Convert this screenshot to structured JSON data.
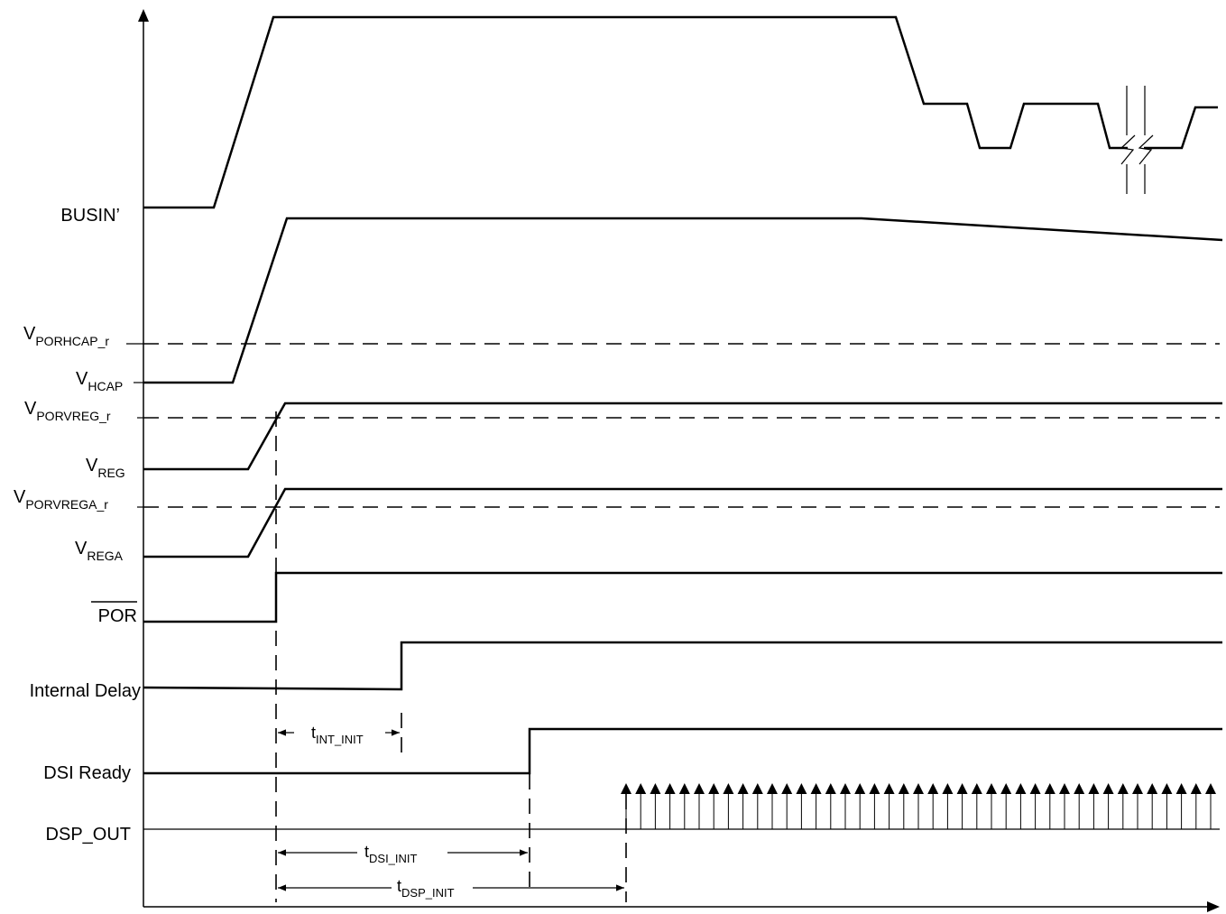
{
  "signals": {
    "busin": {
      "label": "BUSIN’"
    },
    "vhcap": {
      "label": "V",
      "sub": "HCAP"
    },
    "vporhcap_r": {
      "label": "V",
      "sub": "PORHCAP_r"
    },
    "vporvreg_r": {
      "label": "V",
      "sub": "PORVREG_r"
    },
    "vreg": {
      "label": "V",
      "sub": "REG"
    },
    "vporvrega_r": {
      "label": "V",
      "sub": "PORVREGA_r"
    },
    "vrega": {
      "label": "V",
      "sub": "REGA"
    },
    "por": {
      "label": "POR",
      "overbar": true
    },
    "internal_delay": {
      "label": "Internal Delay"
    },
    "dsi_ready": {
      "label": "DSI Ready"
    },
    "dsp_out": {
      "label": "DSP_OUT"
    }
  },
  "timings": {
    "t_int_init": {
      "label": "t",
      "sub": "INT_INIT"
    },
    "t_dsi_init": {
      "label": "t",
      "sub": "DSI_INIT"
    },
    "t_dsp_init": {
      "label": "t",
      "sub": "DSP_INIT"
    }
  }
}
